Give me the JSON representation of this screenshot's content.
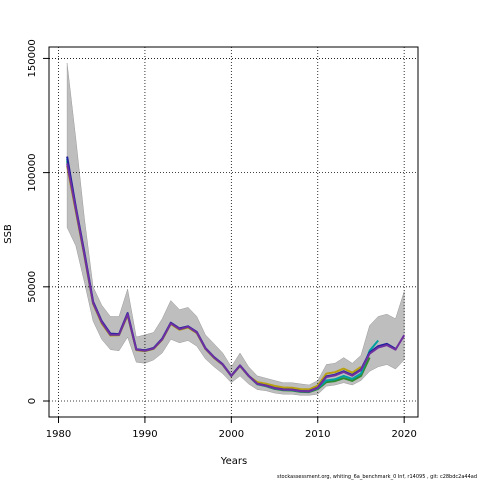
{
  "chart_data": {
    "type": "line",
    "title": "",
    "xlabel": "Years",
    "ylabel": "SSB",
    "xlim": [
      1981,
      2020
    ],
    "ylim": [
      0,
      150000
    ],
    "xticks": [
      1980,
      1990,
      2000,
      2010,
      2020
    ],
    "yticks": [
      0,
      50000,
      100000,
      150000
    ],
    "grid": true,
    "footer": "stockassessment.org,  whiting_6a_benchmark_0  Inf,  r14095 ,  git: c28bdc2a44ad",
    "band": {
      "x": [
        1981,
        1982,
        1983,
        1984,
        1985,
        1986,
        1987,
        1988,
        1989,
        1990,
        1991,
        1992,
        1993,
        1994,
        1995,
        1996,
        1997,
        1998,
        1999,
        2000,
        2001,
        2002,
        2003,
        2004,
        2005,
        2006,
        2007,
        2008,
        2009,
        2010,
        2011,
        2012,
        2013,
        2014,
        2015,
        2016,
        2017,
        2018,
        2019,
        2020
      ],
      "upper": [
        148000,
        115000,
        80000,
        50000,
        42000,
        37000,
        37000,
        49000,
        28000,
        29000,
        30000,
        36000,
        44000,
        40000,
        41000,
        37000,
        29000,
        25000,
        21000,
        15000,
        21000,
        15000,
        11000,
        10000,
        9000,
        8000,
        8000,
        7500,
        7000,
        9000,
        16000,
        16500,
        19000,
        16500,
        20000,
        33000,
        37000,
        38000,
        36000,
        48000
      ],
      "lower": [
        76000,
        68000,
        52000,
        35000,
        27000,
        22500,
        22000,
        28000,
        17000,
        16500,
        18000,
        21000,
        27000,
        25500,
        26500,
        24000,
        18500,
        15000,
        12000,
        8000,
        11000,
        7500,
        5000,
        4500,
        3500,
        3000,
        3000,
        2500,
        2500,
        3000,
        6500,
        7000,
        8000,
        7000,
        9000,
        13000,
        15000,
        16000,
        14000,
        18000
      ]
    },
    "series": [
      {
        "color": "#7030a0",
        "x": [
          1981,
          1982,
          1983,
          1984,
          1985,
          1986,
          1987,
          1988,
          1989,
          1990,
          1991,
          1992,
          1993,
          1994,
          1995,
          1996,
          1997,
          1998,
          1999,
          2000,
          2001,
          2002,
          2003,
          2004,
          2005,
          2006,
          2007,
          2008,
          2009,
          2010,
          2011,
          2012,
          2013,
          2014,
          2015,
          2016,
          2017,
          2018,
          2019,
          2020
        ],
        "values": [
          104000,
          84000,
          64000,
          43000,
          34500,
          29000,
          29000,
          38000,
          22500,
          22000,
          23000,
          27000,
          34000,
          31500,
          32500,
          30000,
          23000,
          19000,
          16000,
          11000,
          15500,
          11000,
          7500,
          6700,
          5600,
          5000,
          4900,
          4300,
          4200,
          5800,
          10500,
          11200,
          12700,
          11100,
          13600,
          20700,
          23400,
          24500,
          22500,
          28800
        ]
      },
      {
        "color": "#1f1f9f",
        "x": [
          1981,
          1982,
          1983,
          1984,
          1985,
          1986,
          1987,
          1988,
          1989,
          1990,
          1991,
          1992,
          1993,
          1994,
          1995,
          1996,
          1997,
          1998,
          1999,
          2000,
          2001,
          2002,
          2003,
          2004,
          2005,
          2006,
          2007,
          2008,
          2009,
          2010,
          2011,
          2012,
          2013,
          2014,
          2015,
          2016,
          2017,
          2018,
          2019
        ],
        "values": [
          107000,
          85000,
          65000,
          43500,
          35000,
          29500,
          29300,
          38500,
          22700,
          22200,
          23200,
          27300,
          34300,
          31800,
          32700,
          30200,
          23200,
          19200,
          16100,
          11100,
          15600,
          11100,
          7600,
          6800,
          5700,
          5100,
          5000,
          4400,
          4300,
          5900,
          10800,
          11500,
          13000,
          11400,
          13900,
          21200,
          24000,
          25000,
          22800
        ]
      },
      {
        "color": "#00a0a0",
        "x": [
          1981,
          1982,
          1983,
          1984,
          1985,
          1986,
          1987,
          1988,
          1989,
          1990,
          1991,
          1992,
          1993,
          1994,
          1995,
          1996,
          1997,
          1998,
          1999,
          2000,
          2001,
          2002,
          2003,
          2004,
          2005,
          2006,
          2007,
          2008,
          2009,
          2010,
          2011,
          2012,
          2013,
          2014,
          2015,
          2016,
          2017
        ],
        "values": [
          106000,
          84500,
          64500,
          43200,
          34700,
          29200,
          29100,
          38200,
          22600,
          22100,
          23100,
          27200,
          34100,
          31600,
          32600,
          30100,
          23100,
          19100,
          16000,
          11000,
          15500,
          11000,
          7400,
          6600,
          5500,
          4900,
          4800,
          4200,
          4100,
          5600,
          9000,
          9500,
          11000,
          9700,
          12000,
          22000,
          26500
        ]
      },
      {
        "color": "#2e8b2e",
        "x": [
          1981,
          1982,
          1983,
          1984,
          1985,
          1986,
          1987,
          1988,
          1989,
          1990,
          1991,
          1992,
          1993,
          1994,
          1995,
          1996,
          1997,
          1998,
          1999,
          2000,
          2001,
          2002,
          2003,
          2004,
          2005,
          2006,
          2007,
          2008,
          2009,
          2010,
          2011,
          2012,
          2013,
          2014,
          2015,
          2016
        ],
        "values": [
          105000,
          84000,
          64000,
          43000,
          34500,
          29000,
          29000,
          38000,
          22500,
          22000,
          23000,
          27000,
          34000,
          31500,
          32500,
          30000,
          23000,
          19000,
          16000,
          11000,
          15500,
          11000,
          7300,
          6500,
          5300,
          4700,
          4600,
          4000,
          3900,
          5200,
          8300,
          8700,
          10000,
          8800,
          11000,
          19000
        ]
      },
      {
        "color": "#b8a010",
        "x": [
          1981,
          1982,
          1983,
          1984,
          1985,
          1986,
          1987,
          1988,
          1989,
          1990,
          1991,
          1992,
          1993,
          1994,
          1995,
          1996,
          1997,
          1998,
          1999,
          2000,
          2001,
          2002,
          2003,
          2004,
          2005,
          2006,
          2007,
          2008,
          2009,
          2010,
          2011,
          2012,
          2013,
          2014,
          2015
        ],
        "values": [
          103000,
          83000,
          63500,
          42500,
          34000,
          28700,
          28800,
          37500,
          22300,
          21800,
          22800,
          26800,
          33700,
          31200,
          32200,
          29700,
          22800,
          18800,
          15800,
          10900,
          15300,
          10900,
          8300,
          7600,
          6600,
          5900,
          5800,
          5200,
          5100,
          6800,
          12000,
          12600,
          14200,
          12400,
          15000
        ]
      }
    ]
  }
}
